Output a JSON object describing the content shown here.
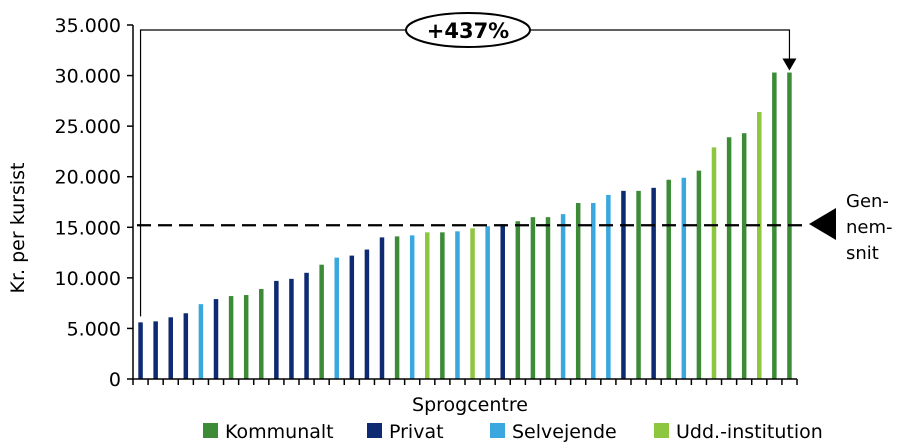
{
  "colors": {
    "Kommunalt": "#3d8b37",
    "Privat": "#0e2a72",
    "Selvejende": "#3aa8df",
    "Udd.-institution": "#8dc63f"
  },
  "chart_data": {
    "type": "bar",
    "ylabel": "Kr. per kursist",
    "xlabel": "Sprogcentre",
    "ylim": [
      0,
      35000
    ],
    "ytick_labels": [
      "0",
      "5.000",
      "10.000",
      "15.000",
      "20.000",
      "25.000",
      "30.000",
      "35.000"
    ],
    "ytick_values": [
      0,
      5000,
      10000,
      15000,
      20000,
      25000,
      30000,
      35000
    ],
    "average": 15200,
    "average_label": [
      "Gen-",
      "nem-",
      "snit"
    ],
    "annotation": "+437%",
    "legend": [
      "Kommunalt",
      "Privat",
      "Selvejende",
      "Udd.-institution"
    ],
    "bars": [
      {
        "v": 5600,
        "g": "Privat"
      },
      {
        "v": 5700,
        "g": "Privat"
      },
      {
        "v": 6100,
        "g": "Privat"
      },
      {
        "v": 6500,
        "g": "Privat"
      },
      {
        "v": 7400,
        "g": "Selvejende"
      },
      {
        "v": 7900,
        "g": "Privat"
      },
      {
        "v": 8200,
        "g": "Kommunalt"
      },
      {
        "v": 8300,
        "g": "Kommunalt"
      },
      {
        "v": 8900,
        "g": "Kommunalt"
      },
      {
        "v": 9700,
        "g": "Privat"
      },
      {
        "v": 9900,
        "g": "Privat"
      },
      {
        "v": 10500,
        "g": "Privat"
      },
      {
        "v": 11300,
        "g": "Kommunalt"
      },
      {
        "v": 12000,
        "g": "Selvejende"
      },
      {
        "v": 12200,
        "g": "Privat"
      },
      {
        "v": 12800,
        "g": "Privat"
      },
      {
        "v": 14000,
        "g": "Privat"
      },
      {
        "v": 14100,
        "g": "Kommunalt"
      },
      {
        "v": 14200,
        "g": "Selvejende"
      },
      {
        "v": 14500,
        "g": "Udd.-institution"
      },
      {
        "v": 14500,
        "g": "Kommunalt"
      },
      {
        "v": 14600,
        "g": "Selvejende"
      },
      {
        "v": 14900,
        "g": "Udd.-institution"
      },
      {
        "v": 15100,
        "g": "Selvejende"
      },
      {
        "v": 15300,
        "g": "Privat"
      },
      {
        "v": 15600,
        "g": "Kommunalt"
      },
      {
        "v": 16000,
        "g": "Kommunalt"
      },
      {
        "v": 16000,
        "g": "Kommunalt"
      },
      {
        "v": 16300,
        "g": "Selvejende"
      },
      {
        "v": 17400,
        "g": "Kommunalt"
      },
      {
        "v": 17400,
        "g": "Selvejende"
      },
      {
        "v": 18200,
        "g": "Selvejende"
      },
      {
        "v": 18600,
        "g": "Privat"
      },
      {
        "v": 18600,
        "g": "Kommunalt"
      },
      {
        "v": 18900,
        "g": "Privat"
      },
      {
        "v": 19700,
        "g": "Kommunalt"
      },
      {
        "v": 19900,
        "g": "Selvejende"
      },
      {
        "v": 20600,
        "g": "Kommunalt"
      },
      {
        "v": 22900,
        "g": "Udd.-institution"
      },
      {
        "v": 23900,
        "g": "Kommunalt"
      },
      {
        "v": 24300,
        "g": "Kommunalt"
      },
      {
        "v": 26400,
        "g": "Udd.-institution"
      },
      {
        "v": 30300,
        "g": "Kommunalt"
      },
      {
        "v": 30300,
        "g": "Kommunalt"
      }
    ]
  }
}
